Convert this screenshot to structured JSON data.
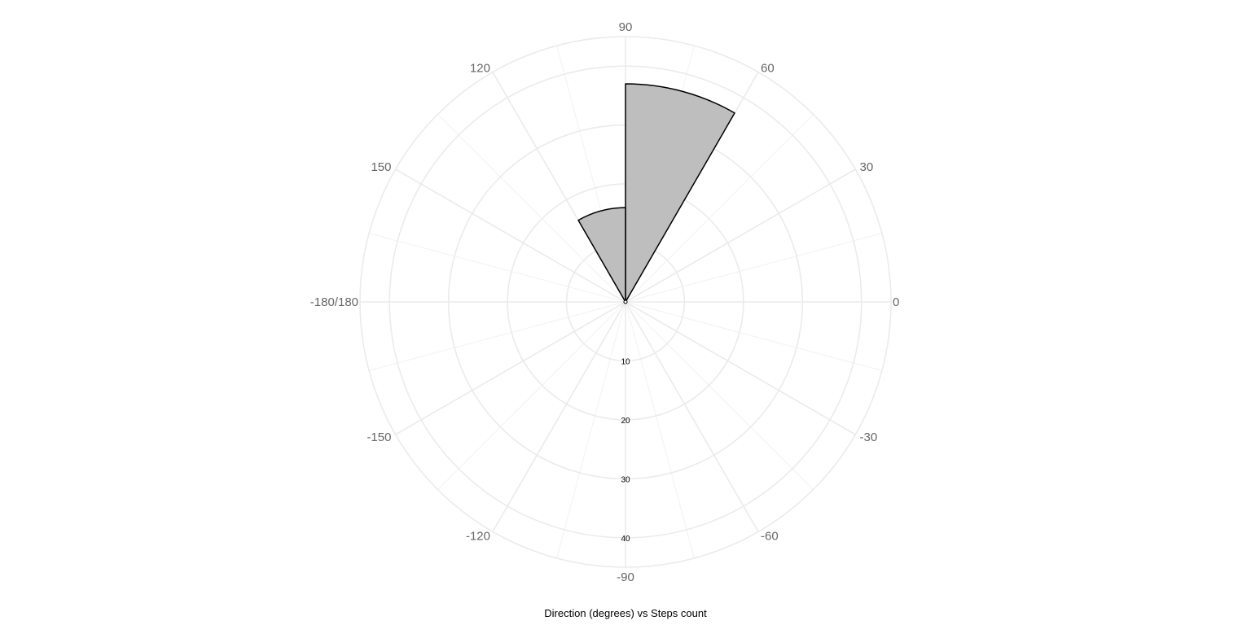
{
  "chart_data": {
    "type": "bar",
    "subtype": "polar-rose",
    "title": "Direction (degrees) vs Steps count",
    "angular_axis": {
      "ticks": [
        0,
        30,
        60,
        90,
        120,
        150,
        180,
        -150,
        -120,
        -90,
        -60,
        -30
      ],
      "tick_labels": [
        "0",
        "30",
        "60",
        "90",
        "120",
        "150",
        "-180/180",
        "-150",
        "-120",
        "-90",
        "-60",
        "-30"
      ],
      "minor_step": 15,
      "direction": "counterclockwise"
    },
    "radial_axis": {
      "range": [
        0,
        45
      ],
      "ticks": [
        10,
        20,
        30,
        40
      ],
      "tick_labels": [
        "10",
        "20",
        "30",
        "40"
      ]
    },
    "grid": true,
    "bars": [
      {
        "theta_start": 60,
        "theta_end": 90,
        "value": 37
      },
      {
        "theta_start": 90,
        "theta_end": 120,
        "value": 16
      }
    ],
    "colors": {
      "bar_fill": "#bebebe",
      "bar_stroke": "#000000",
      "grid": "#ebebeb"
    }
  }
}
